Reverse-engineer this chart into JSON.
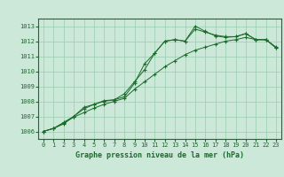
{
  "title": "Graphe pression niveau de la mer (hPa)",
  "bg_color": "#cce8d8",
  "grid_color": "#99ccb0",
  "line_color": "#1a6b2a",
  "border_color": "#1a6b2a",
  "x_labels": [
    0,
    1,
    2,
    3,
    4,
    5,
    6,
    7,
    8,
    9,
    10,
    11,
    12,
    13,
    14,
    15,
    16,
    17,
    18,
    19,
    20,
    21,
    22,
    23
  ],
  "ylim": [
    1005.5,
    1013.5
  ],
  "yticks": [
    1006,
    1007,
    1008,
    1009,
    1010,
    1011,
    1012,
    1013
  ],
  "line1": [
    1006.0,
    1006.2,
    1006.5,
    1007.0,
    1007.5,
    1007.8,
    1008.0,
    1008.1,
    1008.3,
    1009.2,
    1010.5,
    1011.2,
    1012.0,
    1012.1,
    1012.0,
    1012.8,
    1012.6,
    1012.4,
    1012.3,
    1012.3,
    1012.5,
    1012.1,
    1012.1,
    1011.6
  ],
  "line2": [
    1006.0,
    1006.2,
    1006.6,
    1007.0,
    1007.6,
    1007.8,
    1008.05,
    1008.1,
    1008.5,
    1009.3,
    1010.1,
    1011.2,
    1012.0,
    1012.1,
    1012.0,
    1013.0,
    1012.65,
    1012.35,
    1012.25,
    1012.3,
    1012.5,
    1012.1,
    1012.1,
    1011.55
  ],
  "line3": [
    1006.0,
    1006.2,
    1006.55,
    1006.95,
    1007.25,
    1007.55,
    1007.8,
    1008.0,
    1008.2,
    1008.8,
    1009.3,
    1009.8,
    1010.3,
    1010.7,
    1011.1,
    1011.4,
    1011.6,
    1011.8,
    1012.0,
    1012.1,
    1012.25,
    1012.1,
    1012.1,
    1011.55
  ],
  "title_fontsize": 6.0,
  "tick_fontsize": 5.0
}
